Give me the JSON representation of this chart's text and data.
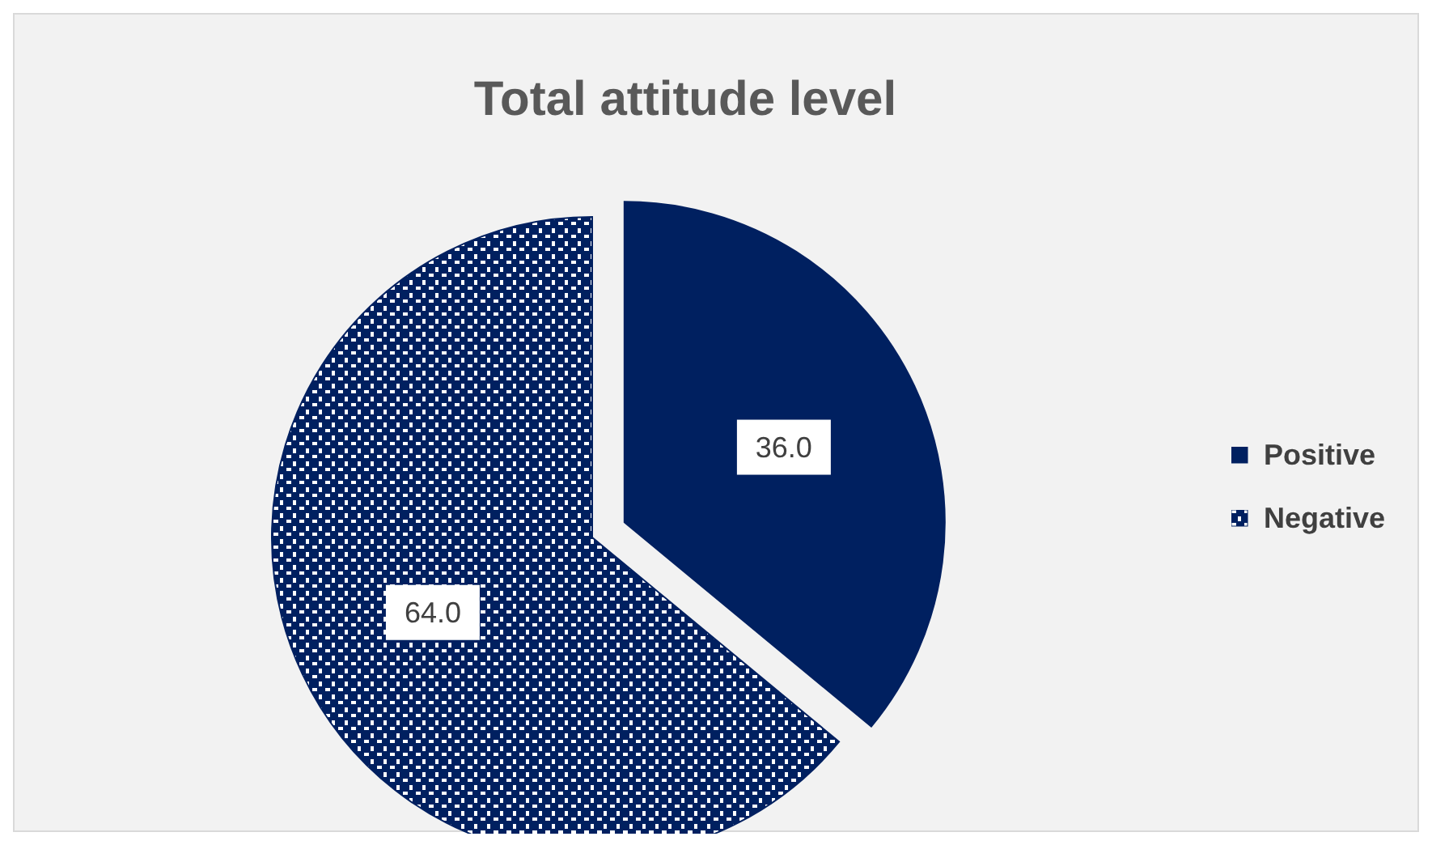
{
  "chart_data": {
    "type": "pie",
    "title": "Total attitude level",
    "categories": [
      "Positive",
      "Negative"
    ],
    "values": [
      36,
      64
    ],
    "value_labels": [
      "36.0",
      "64.0"
    ],
    "colors": [
      "#002060",
      "#002060"
    ],
    "legend": "right"
  }
}
